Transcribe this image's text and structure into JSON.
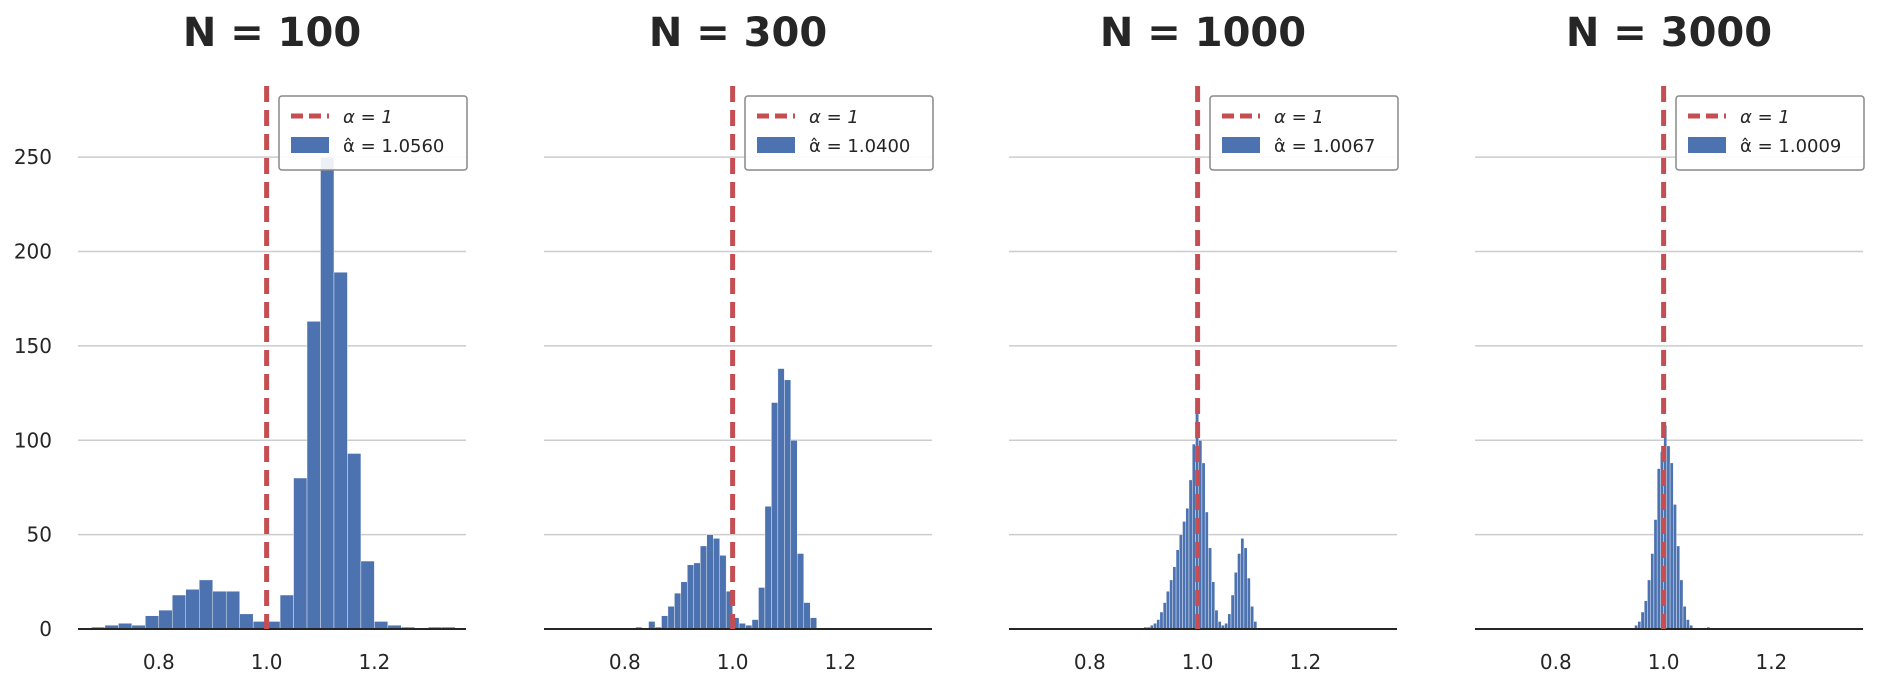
{
  "chart_data": [
    {
      "type": "histogram",
      "title": "N = 100",
      "xlim": [
        0.65,
        1.37
      ],
      "ylim": [
        0,
        275
      ],
      "xticks": [
        0.8,
        1.0,
        1.2
      ],
      "xtick_labels": [
        "0.8",
        "1.0",
        "1.2"
      ],
      "yticks": [
        0,
        50,
        100,
        150,
        200,
        250
      ],
      "ytick_labels": [
        "0",
        "50",
        "100",
        "150",
        "200",
        "250"
      ],
      "grid": "horizontal",
      "legend_position": "top-right",
      "reference_line": {
        "x": 1.0,
        "color": "#c44e52",
        "label": "α = 1"
      },
      "histogram": {
        "label": "α̂ = 1.0560",
        "color": "#4c72b0"
      },
      "bins": [
        {
          "x0": 0.675,
          "x1": 0.7,
          "count": 1
        },
        {
          "x0": 0.7,
          "x1": 0.725,
          "count": 2
        },
        {
          "x0": 0.725,
          "x1": 0.75,
          "count": 3
        },
        {
          "x0": 0.75,
          "x1": 0.775,
          "count": 2
        },
        {
          "x0": 0.775,
          "x1": 0.8,
          "count": 7
        },
        {
          "x0": 0.8,
          "x1": 0.825,
          "count": 10
        },
        {
          "x0": 0.825,
          "x1": 0.85,
          "count": 18
        },
        {
          "x0": 0.85,
          "x1": 0.875,
          "count": 21
        },
        {
          "x0": 0.875,
          "x1": 0.9,
          "count": 26
        },
        {
          "x0": 0.9,
          "x1": 0.925,
          "count": 20
        },
        {
          "x0": 0.925,
          "x1": 0.95,
          "count": 20
        },
        {
          "x0": 0.95,
          "x1": 0.975,
          "count": 8
        },
        {
          "x0": 0.975,
          "x1": 1.0,
          "count": 4
        },
        {
          "x0": 1.0,
          "x1": 1.025,
          "count": 4
        },
        {
          "x0": 1.025,
          "x1": 1.05,
          "count": 18
        },
        {
          "x0": 1.05,
          "x1": 1.075,
          "count": 80
        },
        {
          "x0": 1.075,
          "x1": 1.1,
          "count": 163
        },
        {
          "x0": 1.1,
          "x1": 1.125,
          "count": 250
        },
        {
          "x0": 1.125,
          "x1": 1.15,
          "count": 189
        },
        {
          "x0": 1.15,
          "x1": 1.175,
          "count": 93
        },
        {
          "x0": 1.175,
          "x1": 1.2,
          "count": 36
        },
        {
          "x0": 1.2,
          "x1": 1.225,
          "count": 4
        },
        {
          "x0": 1.225,
          "x1": 1.25,
          "count": 2
        },
        {
          "x0": 1.25,
          "x1": 1.275,
          "count": 1
        },
        {
          "x0": 1.3,
          "x1": 1.325,
          "count": 1
        },
        {
          "x0": 1.325,
          "x1": 1.35,
          "count": 1
        }
      ]
    },
    {
      "type": "histogram",
      "title": "N = 300",
      "xlim": [
        0.65,
        1.37
      ],
      "ylim": [
        0,
        275
      ],
      "xticks": [
        0.8,
        1.0,
        1.2
      ],
      "xtick_labels": [
        "0.8",
        "1.0",
        "1.2"
      ],
      "yticks": [
        0,
        50,
        100,
        150,
        200,
        250
      ],
      "ytick_labels": [
        "",
        "",
        "",
        "",
        "",
        ""
      ],
      "grid": "horizontal",
      "legend_position": "top-right",
      "reference_line": {
        "x": 1.0,
        "color": "#c44e52",
        "label": "α = 1"
      },
      "histogram": {
        "label": "α̂ = 1.0400",
        "color": "#4c72b0"
      },
      "bins": [
        {
          "x0": 0.82,
          "x1": 0.832,
          "count": 1
        },
        {
          "x0": 0.844,
          "x1": 0.856,
          "count": 4
        },
        {
          "x0": 0.856,
          "x1": 0.868,
          "count": 1
        },
        {
          "x0": 0.868,
          "x1": 0.88,
          "count": 7
        },
        {
          "x0": 0.88,
          "x1": 0.892,
          "count": 12
        },
        {
          "x0": 0.892,
          "x1": 0.904,
          "count": 19
        },
        {
          "x0": 0.904,
          "x1": 0.916,
          "count": 25
        },
        {
          "x0": 0.916,
          "x1": 0.928,
          "count": 34
        },
        {
          "x0": 0.928,
          "x1": 0.94,
          "count": 35
        },
        {
          "x0": 0.94,
          "x1": 0.952,
          "count": 44
        },
        {
          "x0": 0.952,
          "x1": 0.964,
          "count": 50
        },
        {
          "x0": 0.964,
          "x1": 0.976,
          "count": 48
        },
        {
          "x0": 0.976,
          "x1": 0.988,
          "count": 39
        },
        {
          "x0": 0.988,
          "x1": 1.0,
          "count": 20
        },
        {
          "x0": 1.0,
          "x1": 1.012,
          "count": 6
        },
        {
          "x0": 1.012,
          "x1": 1.024,
          "count": 3
        },
        {
          "x0": 1.024,
          "x1": 1.036,
          "count": 2
        },
        {
          "x0": 1.036,
          "x1": 1.048,
          "count": 5
        },
        {
          "x0": 1.048,
          "x1": 1.06,
          "count": 22
        },
        {
          "x0": 1.06,
          "x1": 1.072,
          "count": 65
        },
        {
          "x0": 1.072,
          "x1": 1.084,
          "count": 120
        },
        {
          "x0": 1.084,
          "x1": 1.096,
          "count": 138
        },
        {
          "x0": 1.096,
          "x1": 1.108,
          "count": 132
        },
        {
          "x0": 1.108,
          "x1": 1.12,
          "count": 100
        },
        {
          "x0": 1.12,
          "x1": 1.132,
          "count": 40
        },
        {
          "x0": 1.132,
          "x1": 1.144,
          "count": 14
        },
        {
          "x0": 1.144,
          "x1": 1.156,
          "count": 6
        }
      ]
    },
    {
      "type": "histogram",
      "title": "N = 1000",
      "xlim": [
        0.65,
        1.37
      ],
      "ylim": [
        0,
        275
      ],
      "xticks": [
        0.8,
        1.0,
        1.2
      ],
      "xtick_labels": [
        "0.8",
        "1.0",
        "1.2"
      ],
      "yticks": [
        0,
        50,
        100,
        150,
        200,
        250
      ],
      "ytick_labels": [
        "",
        "",
        "",
        "",
        "",
        ""
      ],
      "grid": "horizontal",
      "legend_position": "top-right",
      "reference_line": {
        "x": 1.0,
        "color": "#c44e52",
        "label": "α = 1"
      },
      "histogram": {
        "label": "α̂ = 1.0067",
        "color": "#4c72b0"
      },
      "bins": [
        {
          "x0": 0.9,
          "x1": 0.906,
          "count": 1
        },
        {
          "x0": 0.906,
          "x1": 0.912,
          "count": 1
        },
        {
          "x0": 0.912,
          "x1": 0.918,
          "count": 2
        },
        {
          "x0": 0.918,
          "x1": 0.924,
          "count": 3
        },
        {
          "x0": 0.924,
          "x1": 0.93,
          "count": 5
        },
        {
          "x0": 0.93,
          "x1": 0.936,
          "count": 9
        },
        {
          "x0": 0.936,
          "x1": 0.942,
          "count": 14
        },
        {
          "x0": 0.942,
          "x1": 0.948,
          "count": 20
        },
        {
          "x0": 0.948,
          "x1": 0.954,
          "count": 26
        },
        {
          "x0": 0.954,
          "x1": 0.96,
          "count": 33
        },
        {
          "x0": 0.96,
          "x1": 0.966,
          "count": 42
        },
        {
          "x0": 0.966,
          "x1": 0.972,
          "count": 50
        },
        {
          "x0": 0.972,
          "x1": 0.978,
          "count": 57
        },
        {
          "x0": 0.978,
          "x1": 0.984,
          "count": 64
        },
        {
          "x0": 0.984,
          "x1": 0.99,
          "count": 79
        },
        {
          "x0": 0.99,
          "x1": 0.996,
          "count": 98
        },
        {
          "x0": 0.996,
          "x1": 1.002,
          "count": 114
        },
        {
          "x0": 1.002,
          "x1": 1.008,
          "count": 100
        },
        {
          "x0": 1.008,
          "x1": 1.014,
          "count": 88
        },
        {
          "x0": 1.014,
          "x1": 1.02,
          "count": 62
        },
        {
          "x0": 1.02,
          "x1": 1.026,
          "count": 43
        },
        {
          "x0": 1.026,
          "x1": 1.032,
          "count": 25
        },
        {
          "x0": 1.032,
          "x1": 1.038,
          "count": 10
        },
        {
          "x0": 1.038,
          "x1": 1.044,
          "count": 4
        },
        {
          "x0": 1.044,
          "x1": 1.05,
          "count": 2
        },
        {
          "x0": 1.05,
          "x1": 1.056,
          "count": 3
        },
        {
          "x0": 1.056,
          "x1": 1.062,
          "count": 8
        },
        {
          "x0": 1.062,
          "x1": 1.068,
          "count": 18
        },
        {
          "x0": 1.068,
          "x1": 1.074,
          "count": 30
        },
        {
          "x0": 1.074,
          "x1": 1.08,
          "count": 40
        },
        {
          "x0": 1.08,
          "x1": 1.086,
          "count": 48
        },
        {
          "x0": 1.086,
          "x1": 1.092,
          "count": 43
        },
        {
          "x0": 1.092,
          "x1": 1.098,
          "count": 27
        },
        {
          "x0": 1.098,
          "x1": 1.104,
          "count": 12
        },
        {
          "x0": 1.104,
          "x1": 1.11,
          "count": 4
        }
      ]
    },
    {
      "type": "histogram",
      "title": "N = 3000",
      "xlim": [
        0.65,
        1.37
      ],
      "ylim": [
        0,
        275
      ],
      "xticks": [
        0.8,
        1.0,
        1.2
      ],
      "xtick_labels": [
        "0.8",
        "1.0",
        "1.2"
      ],
      "yticks": [
        0,
        50,
        100,
        150,
        200,
        250
      ],
      "ytick_labels": [
        "",
        "",
        "",
        "",
        "",
        ""
      ],
      "grid": "horizontal",
      "legend_position": "top-right",
      "reference_line": {
        "x": 1.0,
        "color": "#c44e52",
        "label": "α = 1"
      },
      "histogram": {
        "label": "α̂ = 1.0009",
        "color": "#4c72b0"
      },
      "bins": [
        {
          "x0": 0.946,
          "x1": 0.952,
          "count": 2
        },
        {
          "x0": 0.952,
          "x1": 0.958,
          "count": 4
        },
        {
          "x0": 0.958,
          "x1": 0.964,
          "count": 9
        },
        {
          "x0": 0.964,
          "x1": 0.97,
          "count": 15
        },
        {
          "x0": 0.97,
          "x1": 0.976,
          "count": 26
        },
        {
          "x0": 0.976,
          "x1": 0.982,
          "count": 40
        },
        {
          "x0": 0.982,
          "x1": 0.988,
          "count": 58
        },
        {
          "x0": 0.988,
          "x1": 0.994,
          "count": 85
        },
        {
          "x0": 0.994,
          "x1": 1.0,
          "count": 94
        },
        {
          "x0": 1.0,
          "x1": 1.006,
          "count": 108
        },
        {
          "x0": 1.006,
          "x1": 1.012,
          "count": 97
        },
        {
          "x0": 1.012,
          "x1": 1.018,
          "count": 88
        },
        {
          "x0": 1.018,
          "x1": 1.024,
          "count": 66
        },
        {
          "x0": 1.024,
          "x1": 1.03,
          "count": 44
        },
        {
          "x0": 1.03,
          "x1": 1.036,
          "count": 26
        },
        {
          "x0": 1.036,
          "x1": 1.042,
          "count": 12
        },
        {
          "x0": 1.042,
          "x1": 1.048,
          "count": 5
        },
        {
          "x0": 1.048,
          "x1": 1.054,
          "count": 2
        },
        {
          "x0": 1.08,
          "x1": 1.086,
          "count": 1
        }
      ]
    }
  ]
}
